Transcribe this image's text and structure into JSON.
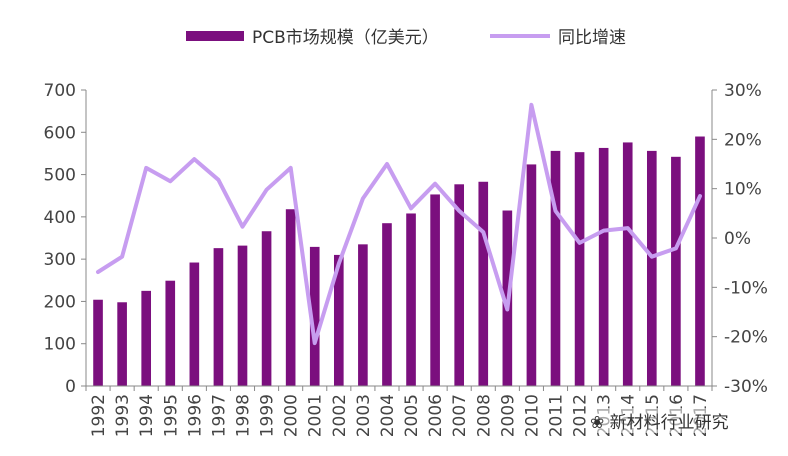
{
  "chart_data": {
    "type": "bar",
    "title": "",
    "categories": [
      "1992",
      "1993",
      "1994",
      "1995",
      "1996",
      "1997",
      "1998",
      "1999",
      "2000",
      "2001",
      "2002",
      "2003",
      "2004",
      "2005",
      "2006",
      "2007",
      "2008",
      "2009",
      "2010",
      "2011",
      "2012",
      "2013",
      "2014",
      "2015",
      "2016",
      "2017"
    ],
    "series": [
      {
        "name": "PCB市场规模（亿美元）",
        "type": "bar",
        "axis": "left",
        "color": "#7b0f7e",
        "values": [
          204,
          198,
          225,
          249,
          292,
          326,
          332,
          366,
          418,
          329,
          310,
          335,
          385,
          408,
          453,
          477,
          483,
          415,
          524,
          556,
          553,
          563,
          576,
          556,
          542,
          590
        ]
      },
      {
        "name": "同比增速",
        "type": "line",
        "axis": "right",
        "color": "#c79df0",
        "values": [
          -6.9,
          -3.8,
          14.2,
          11.5,
          16.0,
          11.8,
          2.3,
          9.8,
          14.2,
          -21.3,
          -5.2,
          8.0,
          15.0,
          6.0,
          11.0,
          5.5,
          1.2,
          -14.5,
          27.0,
          5.5,
          -1.0,
          1.5,
          2.0,
          -3.8,
          -2.1,
          8.5
        ]
      }
    ],
    "yaxis_left": {
      "ylim": [
        0,
        700
      ],
      "ticks": [
        0,
        100,
        200,
        300,
        400,
        500,
        600,
        700
      ],
      "tick_labels": [
        "0",
        "100",
        "200",
        "300",
        "400",
        "500",
        "600",
        "700"
      ]
    },
    "yaxis_right": {
      "ylim": [
        -30,
        30
      ],
      "ticks": [
        -30,
        -20,
        -10,
        0,
        10,
        20,
        30
      ],
      "tick_labels": [
        "-30%",
        "-20%",
        "-10%",
        "0%",
        "10%",
        "20%",
        "30%"
      ]
    },
    "x_tick_labels": [
      "1992",
      "1993",
      "1994",
      "1995",
      "1996",
      "1997",
      "1998",
      "1999",
      "2000",
      "2001",
      "2002",
      "2003",
      "2004",
      "2005",
      "2006",
      "2007",
      "2008",
      "2009",
      "2010",
      "2011",
      "2012",
      "2013",
      "2014",
      "2015",
      "2016",
      "2017"
    ],
    "grid": false,
    "legend": {
      "position": "top",
      "entries": [
        "PCB市场规模（亿美元）",
        "同比增速"
      ]
    }
  },
  "watermark": {
    "text": "新材料行业研究"
  }
}
